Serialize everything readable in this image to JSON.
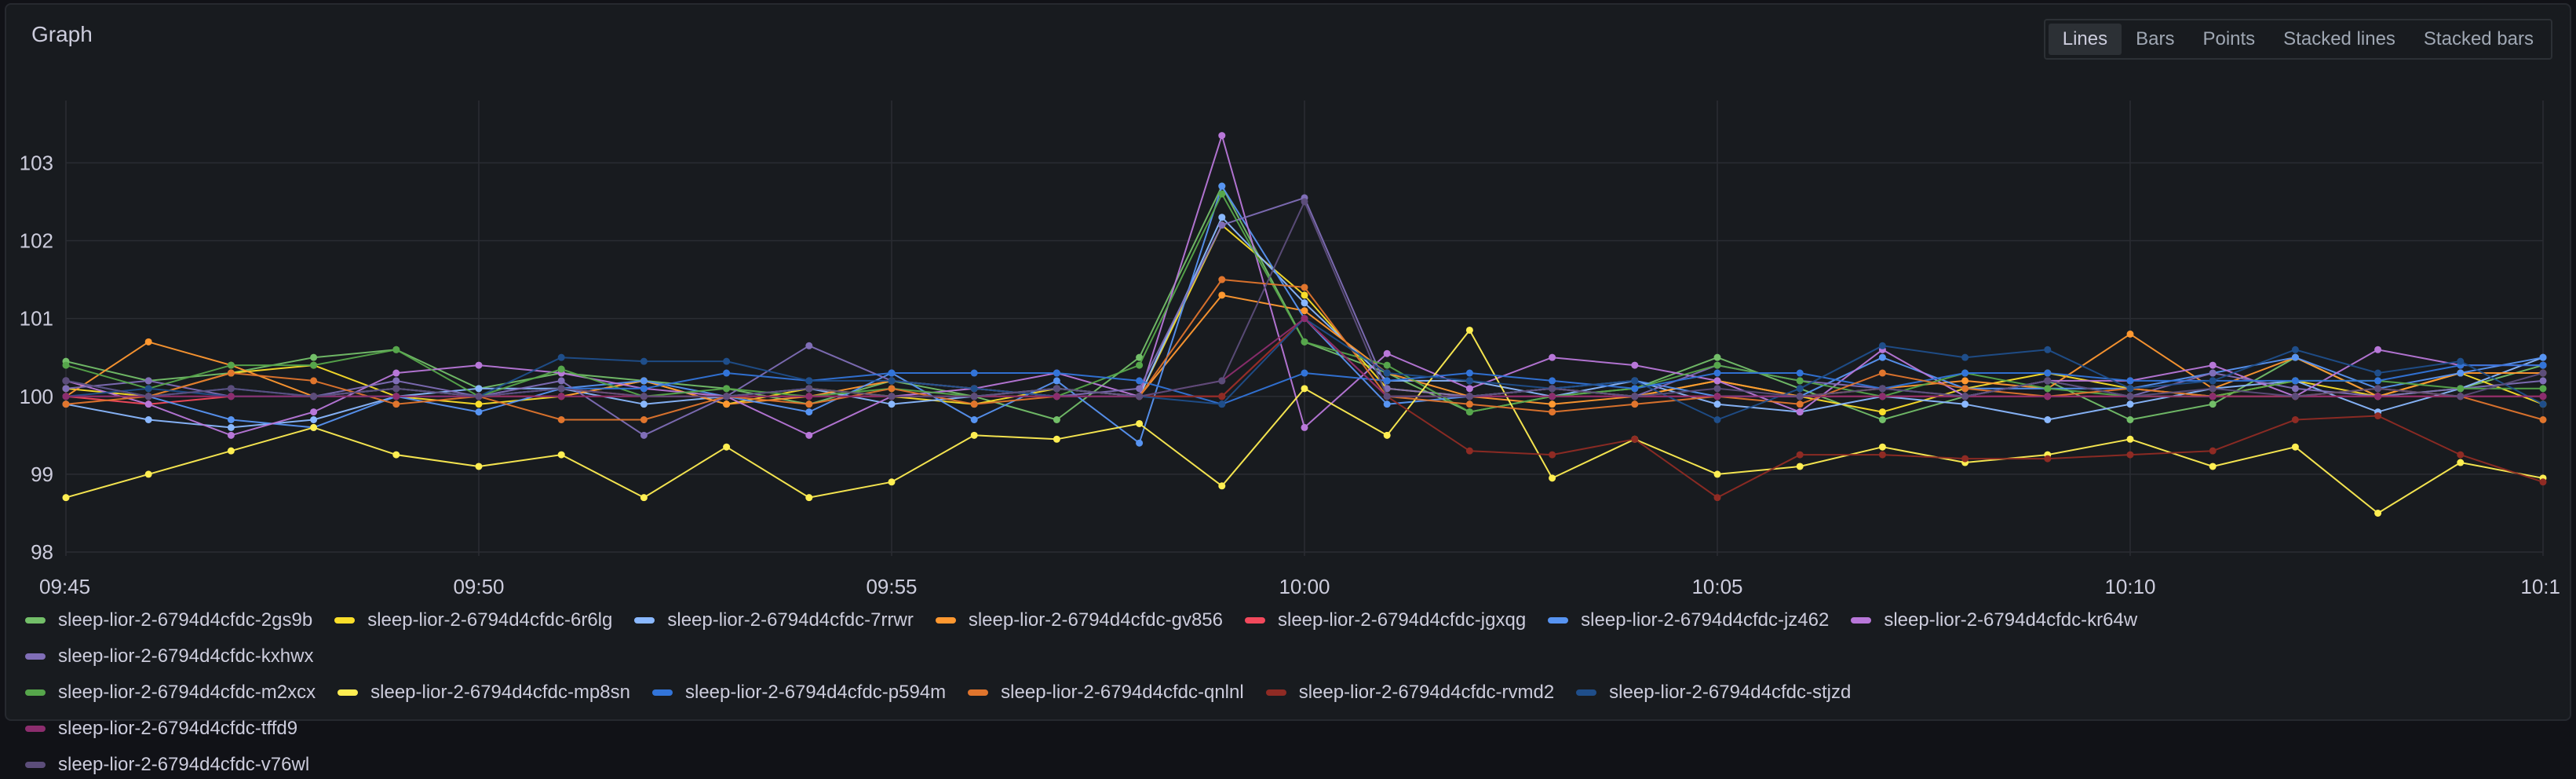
{
  "panel": {
    "title": "Graph",
    "modes": [
      "Lines",
      "Bars",
      "Points",
      "Stacked lines",
      "Stacked bars"
    ],
    "active_mode": "Lines"
  },
  "chart_data": {
    "type": "line",
    "title": "Graph",
    "xlabel": "",
    "ylabel": "",
    "x": [
      "09:45",
      "09:46",
      "09:47",
      "09:48",
      "09:49",
      "09:50",
      "09:51",
      "09:52",
      "09:53",
      "09:54",
      "09:55",
      "09:56",
      "09:57",
      "09:58",
      "09:59",
      "10:00",
      "10:01",
      "10:02",
      "10:03",
      "10:04",
      "10:05",
      "10:06",
      "10:07",
      "10:08",
      "10:09",
      "10:10",
      "10:11",
      "10:12",
      "10:13",
      "10:14",
      "10:15"
    ],
    "x_tick_labels": [
      "09:45",
      "09:50",
      "09:55",
      "10:00",
      "10:05",
      "10:10",
      "10:1"
    ],
    "y_ticks": [
      98,
      99,
      100,
      101,
      102,
      103
    ],
    "ylim": [
      97.95,
      103.8
    ],
    "grid": true,
    "legend": "bottom",
    "series": [
      {
        "name": "sleep-lior-2-6794d4cfdc-2gs9b",
        "color": "#73bf69",
        "values": [
          100.45,
          100.2,
          100.3,
          100.5,
          100.6,
          100.1,
          100.3,
          100.2,
          100.1,
          99.9,
          100.2,
          100.0,
          99.7,
          100.5,
          102.7,
          100.7,
          100.3,
          99.8,
          100.0,
          100.1,
          100.5,
          100.1,
          99.7,
          100.0,
          100.2,
          99.7,
          99.9,
          100.5,
          100.0,
          100.1,
          100.4
        ]
      },
      {
        "name": "sleep-lior-2-6794d4cfdc-6r6lg",
        "color": "#fade2a",
        "values": [
          100.1,
          100.0,
          100.3,
          100.4,
          100.0,
          99.9,
          100.0,
          100.2,
          99.9,
          100.1,
          100.0,
          99.9,
          100.1,
          100.0,
          102.2,
          101.3,
          100.1,
          100.0,
          100.1,
          100.0,
          100.2,
          100.0,
          99.8,
          100.1,
          100.3,
          100.1,
          100.0,
          100.2,
          100.0,
          100.3,
          99.9
        ]
      },
      {
        "name": "sleep-lior-2-6794d4cfdc-7rrwr",
        "color": "#8ab8ff",
        "values": [
          99.9,
          99.7,
          99.6,
          99.7,
          100.0,
          100.1,
          100.1,
          99.9,
          100.0,
          100.1,
          99.9,
          100.0,
          100.1,
          100.0,
          102.3,
          101.2,
          100.2,
          100.2,
          100.0,
          100.2,
          99.9,
          99.8,
          100.0,
          99.9,
          99.7,
          99.9,
          100.1,
          100.2,
          99.8,
          100.1,
          100.5
        ]
      },
      {
        "name": "sleep-lior-2-6794d4cfdc-gv856",
        "color": "#ff9830",
        "values": [
          100.0,
          100.7,
          100.4,
          100.0,
          100.1,
          100.0,
          100.0,
          100.2,
          99.9,
          100.0,
          100.2,
          100.1,
          100.0,
          100.0,
          101.3,
          101.1,
          100.3,
          100.0,
          99.9,
          100.0,
          100.2,
          100.0,
          100.1,
          100.2,
          100.1,
          100.8,
          100.1,
          100.5,
          100.0,
          100.3,
          100.3
        ]
      },
      {
        "name": "sleep-lior-2-6794d4cfdc-jgxqg",
        "color": "#f2495c",
        "values": [
          100.0,
          99.9,
          100.0,
          100.0,
          100.0,
          100.0,
          100.1,
          100.0,
          100.0,
          100.0,
          100.0,
          100.0,
          100.0,
          100.0,
          100.0,
          101.0,
          100.0,
          100.0,
          100.0,
          100.0,
          100.0,
          100.0,
          100.0,
          100.0,
          100.0,
          100.0,
          100.0,
          100.0,
          100.0,
          100.0,
          100.0
        ]
      },
      {
        "name": "sleep-lior-2-6794d4cfdc-jz462",
        "color": "#5794f2",
        "values": [
          100.2,
          100.0,
          99.7,
          99.6,
          100.0,
          99.8,
          100.1,
          100.2,
          100.0,
          99.8,
          100.3,
          99.7,
          100.2,
          99.4,
          102.7,
          101.0,
          99.9,
          100.0,
          100.1,
          100.2,
          100.0,
          100.0,
          100.5,
          100.1,
          100.1,
          100.1,
          100.3,
          100.5,
          100.1,
          100.3,
          100.5
        ]
      },
      {
        "name": "sleep-lior-2-6794d4cfdc-kr64w",
        "color": "#b877d9",
        "values": [
          100.2,
          99.9,
          99.5,
          99.8,
          100.3,
          100.4,
          100.3,
          100.1,
          100.0,
          99.5,
          100.0,
          100.1,
          100.3,
          100.0,
          103.35,
          99.6,
          100.55,
          100.1,
          100.5,
          100.4,
          100.2,
          99.8,
          100.6,
          100.0,
          100.2,
          100.2,
          100.4,
          100.0,
          100.6,
          100.4,
          100.4
        ]
      },
      {
        "name": "sleep-lior-2-6794d4cfdc-kxhwx",
        "color": "#806eb7",
        "values": [
          100.1,
          100.2,
          100.0,
          100.0,
          100.2,
          100.0,
          100.2,
          99.5,
          100.0,
          100.65,
          100.2,
          100.1,
          100.0,
          100.1,
          102.2,
          102.55,
          100.1,
          100.0,
          100.1,
          100.0,
          100.4,
          100.2,
          100.1,
          100.0,
          100.2,
          100.0,
          100.3,
          100.1,
          100.0,
          100.1,
          100.2
        ]
      },
      {
        "name": "sleep-lior-2-6794d4cfdc-m2xcx",
        "color": "#56a64b",
        "values": [
          100.4,
          100.1,
          100.4,
          100.4,
          100.6,
          100.0,
          100.35,
          100.0,
          100.1,
          100.0,
          100.1,
          100.0,
          100.0,
          100.4,
          102.6,
          100.7,
          100.4,
          99.8,
          100.0,
          100.1,
          100.4,
          100.2,
          100.0,
          100.3,
          100.1,
          100.0,
          100.0,
          100.2,
          100.2,
          100.1,
          100.1
        ]
      },
      {
        "name": "sleep-lior-2-6794d4cfdc-mp8sn",
        "color": "#ffee52",
        "values": [
          98.7,
          99.0,
          99.3,
          99.6,
          99.25,
          99.1,
          99.25,
          98.7,
          99.35,
          98.7,
          98.9,
          99.5,
          99.45,
          99.65,
          98.85,
          100.1,
          99.5,
          100.85,
          98.95,
          99.45,
          99.0,
          99.1,
          99.35,
          99.15,
          99.25,
          99.45,
          99.1,
          99.35,
          98.5,
          99.15,
          98.95
        ]
      },
      {
        "name": "sleep-lior-2-6794d4cfdc-p594m",
        "color": "#3274d9",
        "values": [
          100.0,
          100.0,
          100.1,
          100.0,
          100.1,
          100.0,
          100.1,
          100.1,
          100.3,
          100.2,
          100.3,
          100.3,
          100.3,
          100.2,
          99.9,
          100.3,
          100.2,
          100.3,
          100.2,
          100.1,
          100.3,
          100.3,
          100.1,
          100.3,
          100.3,
          100.2,
          100.2,
          100.2,
          100.2,
          100.4,
          100.4
        ]
      },
      {
        "name": "sleep-lior-2-6794d4cfdc-qnlnl",
        "color": "#e0752d",
        "values": [
          99.9,
          100.0,
          100.3,
          100.2,
          99.9,
          100.0,
          99.7,
          99.7,
          100.0,
          99.9,
          100.1,
          99.9,
          100.0,
          100.0,
          101.5,
          101.4,
          100.0,
          99.9,
          99.8,
          99.9,
          100.0,
          99.9,
          100.3,
          100.1,
          100.0,
          100.1,
          100.0,
          100.0,
          100.1,
          100.0,
          99.7
        ]
      },
      {
        "name": "sleep-lior-2-6794d4cfdc-rvmd2",
        "color": "#8f2b24",
        "values": [
          100.0,
          100.0,
          100.0,
          100.0,
          100.0,
          100.0,
          100.0,
          100.0,
          100.0,
          100.0,
          100.0,
          100.0,
          100.0,
          100.0,
          100.0,
          101.0,
          100.0,
          99.3,
          99.25,
          99.45,
          98.7,
          99.25,
          99.25,
          99.2,
          99.2,
          99.25,
          99.3,
          99.7,
          99.75,
          99.25,
          98.9
        ]
      },
      {
        "name": "sleep-lior-2-6794d4cfdc-stjzd",
        "color": "#1f4e8a",
        "values": [
          100.0,
          100.1,
          100.0,
          100.0,
          100.0,
          100.0,
          100.5,
          100.45,
          100.45,
          100.2,
          100.2,
          100.1,
          100.0,
          100.0,
          99.9,
          101.0,
          100.3,
          100.2,
          100.1,
          100.2,
          99.7,
          100.1,
          100.65,
          100.5,
          100.6,
          100.1,
          100.2,
          100.6,
          100.3,
          100.45,
          99.9
        ]
      },
      {
        "name": "sleep-lior-2-6794d4cfdc-tffd9",
        "color": "#8c2d6e",
        "values": [
          100.0,
          100.0,
          100.0,
          100.0,
          100.0,
          100.0,
          100.0,
          100.0,
          100.0,
          100.0,
          100.0,
          100.0,
          100.0,
          100.0,
          100.2,
          101.0,
          100.0,
          100.0,
          100.0,
          100.0,
          100.0,
          100.0,
          100.0,
          100.0,
          100.0,
          100.0,
          100.0,
          100.0,
          100.0,
          100.0,
          100.0
        ]
      },
      {
        "name": "sleep-lior-2-6794d4cfdc-v76wl",
        "color": "#5c4d7a",
        "values": [
          100.2,
          100.0,
          100.1,
          100.0,
          100.1,
          100.0,
          100.1,
          100.0,
          100.0,
          100.1,
          100.0,
          100.0,
          100.1,
          100.0,
          100.2,
          102.5,
          100.0,
          100.0,
          100.1,
          100.0,
          100.1,
          100.0,
          100.1,
          100.0,
          100.2,
          100.0,
          100.1,
          100.0,
          100.1,
          100.0,
          100.3
        ]
      }
    ]
  }
}
